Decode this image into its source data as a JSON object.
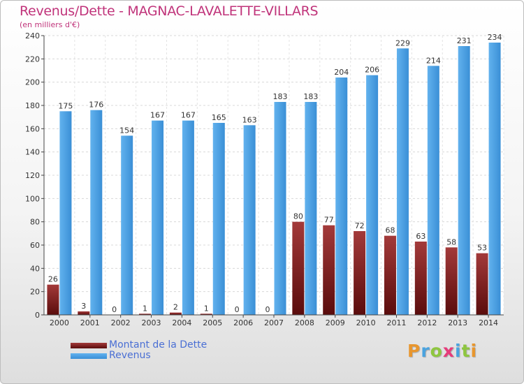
{
  "title": "Revenus/Dette - MAGNAC-LAVALETTE-VILLARS",
  "subtitle": "(en milliers d'€)",
  "logo": {
    "text": "Proxiti",
    "colors": [
      "#e8962e",
      "#4aa3df",
      "#8ec63f",
      "#e63b7a",
      "#4aa3df",
      "#8ec63f",
      "#e8962e"
    ]
  },
  "chart_data": {
    "type": "bar",
    "categories": [
      "2000",
      "2001",
      "2002",
      "2003",
      "2004",
      "2005",
      "2006",
      "2007",
      "2008",
      "2009",
      "2010",
      "2011",
      "2012",
      "2013",
      "2014"
    ],
    "series": [
      {
        "name": "Montant de la Dette",
        "color": "#7a1a1a",
        "values": [
          26,
          3,
          0,
          1,
          2,
          1,
          0,
          0,
          80,
          77,
          72,
          68,
          63,
          58,
          53
        ]
      },
      {
        "name": "Revenus",
        "color": "#4ea3e3",
        "values": [
          175,
          176,
          154,
          167,
          167,
          165,
          163,
          183,
          183,
          204,
          206,
          229,
          214,
          231,
          234
        ]
      }
    ],
    "ylim": [
      0,
      240
    ],
    "yticks": [
      0,
      20,
      40,
      60,
      80,
      100,
      120,
      140,
      160,
      180,
      200,
      220,
      240
    ],
    "grid": true,
    "legend": "bottom-left"
  }
}
